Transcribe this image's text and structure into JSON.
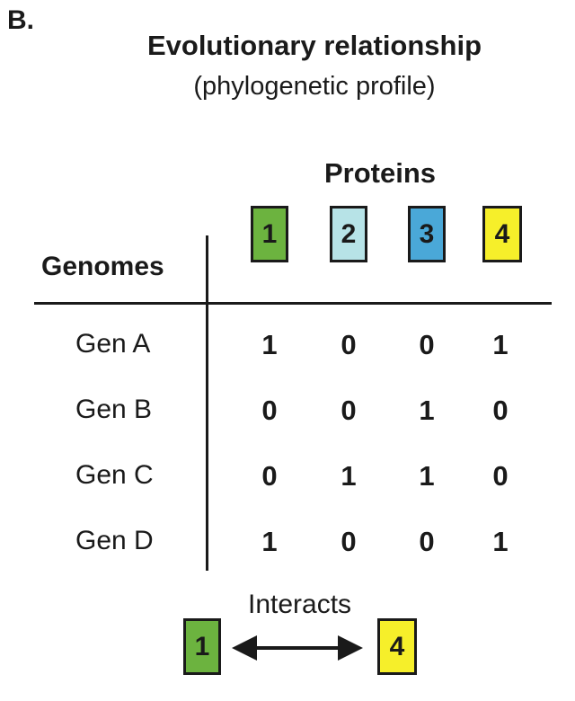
{
  "panel_label": "B.",
  "title": "Evolutionary relationship",
  "subtitle": "(phylogenetic profile)",
  "proteins_header": "Proteins",
  "genomes_header": "Genomes",
  "proteins": [
    {
      "label": "1",
      "color": "#6cb33f"
    },
    {
      "label": "2",
      "color": "#b7e3e7"
    },
    {
      "label": "3",
      "color": "#4aa8d8"
    },
    {
      "label": "4",
      "color": "#f6ef2a"
    }
  ],
  "genomes": [
    {
      "label": "Gen A",
      "values": [
        "1",
        "0",
        "0",
        "1"
      ]
    },
    {
      "label": "Gen B",
      "values": [
        "0",
        "0",
        "1",
        "0"
      ]
    },
    {
      "label": "Gen C",
      "values": [
        "0",
        "1",
        "1",
        "0"
      ]
    },
    {
      "label": "Gen D",
      "values": [
        "1",
        "0",
        "0",
        "1"
      ]
    }
  ],
  "interaction": {
    "label": "Interacts",
    "left": {
      "label": "1",
      "color": "#6cb33f"
    },
    "right": {
      "label": "4",
      "color": "#f6ef2a"
    }
  }
}
